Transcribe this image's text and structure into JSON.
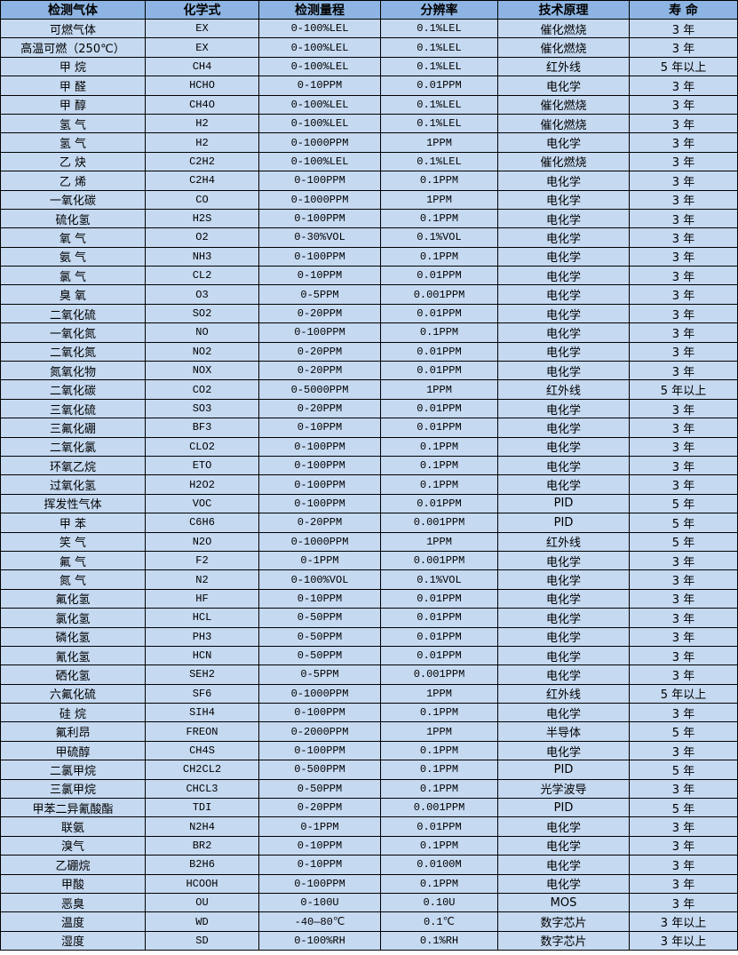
{
  "colors": {
    "header_bg": "#8DB4E2",
    "row_bg": "#C5D9F1"
  },
  "headers": [
    "检测气体",
    "化学式",
    "检测量程",
    "分辨率",
    "技术原理",
    "寿 命"
  ],
  "rows": [
    [
      "可燃气体",
      "EX",
      "0-100%LEL",
      "0.1%LEL",
      "催化燃烧",
      "3 年"
    ],
    [
      "高温可燃（250℃）",
      "EX",
      "0-100%LEL",
      "0.1%LEL",
      "催化燃烧",
      "3 年"
    ],
    [
      "甲 烷",
      "CH4",
      "0-100%LEL",
      "0.1%LEL",
      "红外线",
      "5 年以上"
    ],
    [
      "甲 醛",
      "HCHO",
      "0-10PPM",
      "0.01PPM",
      "电化学",
      "3 年"
    ],
    [
      "甲 醇",
      "CH4O",
      "0-100%LEL",
      "0.1%LEL",
      "催化燃烧",
      "3 年"
    ],
    [
      "氢 气",
      "H2",
      "0-100%LEL",
      "0.1%LEL",
      "催化燃烧",
      "3 年"
    ],
    [
      "氢 气",
      "H2",
      "0-1000PPM",
      "1PPM",
      "电化学",
      "3 年"
    ],
    [
      "乙 炔",
      "C2H2",
      "0-100%LEL",
      "0.1%LEL",
      "催化燃烧",
      "3 年"
    ],
    [
      "乙 烯",
      "C2H4",
      "0-100PPM",
      "0.1PPM",
      "电化学",
      "3 年"
    ],
    [
      "一氧化碳",
      "CO",
      "0-1000PPM",
      "1PPM",
      "电化学",
      "3 年"
    ],
    [
      "硫化氢",
      "H2S",
      "0-100PPM",
      "0.1PPM",
      "电化学",
      "3 年"
    ],
    [
      "氧 气",
      "O2",
      "0-30%VOL",
      "0.1%VOL",
      "电化学",
      "3 年"
    ],
    [
      "氨 气",
      "NH3",
      "0-100PPM",
      "0.1PPM",
      "电化学",
      "3 年"
    ],
    [
      "氯 气",
      "CL2",
      "0-10PPM",
      "0.01PPM",
      "电化学",
      "3 年"
    ],
    [
      "臭 氧",
      "O3",
      "0-5PPM",
      "0.001PPM",
      "电化学",
      "3 年"
    ],
    [
      "二氧化硫",
      "SO2",
      "0-20PPM",
      "0.01PPM",
      "电化学",
      "3 年"
    ],
    [
      "一氧化氮",
      "NO",
      "0-100PPM",
      "0.1PPM",
      "电化学",
      "3 年"
    ],
    [
      "二氧化氮",
      "NO2",
      "0-20PPM",
      "0.01PPM",
      "电化学",
      "3 年"
    ],
    [
      "氮氧化物",
      "NOX",
      "0-20PPM",
      "0.01PPM",
      "电化学",
      "3 年"
    ],
    [
      "二氧化碳",
      "CO2",
      "0-5000PPM",
      "1PPM",
      "红外线",
      "5 年以上"
    ],
    [
      "三氧化硫",
      "SO3",
      "0-20PPM",
      "0.01PPM",
      "电化学",
      "3 年"
    ],
    [
      "三氟化硼",
      "BF3",
      "0-10PPM",
      "0.01PPM",
      "电化学",
      "3 年"
    ],
    [
      "二氧化氯",
      "CLO2",
      "0-100PPM",
      "0.1PPM",
      "电化学",
      "3 年"
    ],
    [
      "环氧乙烷",
      "ETO",
      "0-100PPM",
      "0.1PPM",
      "电化学",
      "3 年"
    ],
    [
      "过氧化氢",
      "H2O2",
      "0-100PPM",
      "0.1PPM",
      "电化学",
      "3 年"
    ],
    [
      "挥发性气体",
      "VOC",
      "0-100PPM",
      "0.01PPM",
      "PID",
      "5 年"
    ],
    [
      "甲 苯",
      "C6H6",
      "0-20PPM",
      "0.001PPM",
      "PID",
      "5 年"
    ],
    [
      "笑 气",
      "N2O",
      "0-1000PPM",
      "1PPM",
      "红外线",
      "5 年"
    ],
    [
      "氟 气",
      "F2",
      "0-1PPM",
      "0.001PPM",
      "电化学",
      "3 年"
    ],
    [
      "氮 气",
      "N2",
      "0-100%VOL",
      "0.1%VOL",
      "电化学",
      "3 年"
    ],
    [
      "氟化氢",
      "HF",
      "0-10PPM",
      "0.01PPM",
      "电化学",
      "3 年"
    ],
    [
      "氯化氢",
      "HCL",
      "0-50PPM",
      "0.01PPM",
      "电化学",
      "3 年"
    ],
    [
      "磷化氢",
      "PH3",
      "0-50PPM",
      "0.01PPM",
      "电化学",
      "3 年"
    ],
    [
      "氰化氢",
      "HCN",
      "0-50PPM",
      "0.01PPM",
      "电化学",
      "3 年"
    ],
    [
      "硒化氢",
      "SEH2",
      "0-5PPM",
      "0.001PPM",
      "电化学",
      "3 年"
    ],
    [
      "六氟化硫",
      "SF6",
      "0-1000PPM",
      "1PPM",
      "红外线",
      "5 年以上"
    ],
    [
      "硅 烷",
      "SIH4",
      "0-100PPM",
      "0.1PPM",
      "电化学",
      "3 年"
    ],
    [
      "氟利昂",
      "FREON",
      "0-2000PPM",
      "1PPM",
      "半导体",
      "5 年"
    ],
    [
      "甲硫醇",
      "CH4S",
      "0-100PPM",
      "0.1PPM",
      "电化学",
      "3 年"
    ],
    [
      "二氯甲烷",
      "CH2CL2",
      "0-500PPM",
      "0.1PPM",
      "PID",
      "5 年"
    ],
    [
      "三氯甲烷",
      "CHCL3",
      "0-50PPM",
      "0.1PPM",
      "光学波导",
      "3 年"
    ],
    [
      "甲苯二异氰酸酯",
      "TDI",
      "0-20PPM",
      "0.001PPM",
      "PID",
      "5 年"
    ],
    [
      "联氨",
      "N2H4",
      "0-1PPM",
      "0.01PPM",
      "电化学",
      "3 年"
    ],
    [
      "溴气",
      "BR2",
      "0-10PPM",
      "0.1PPM",
      "电化学",
      "3 年"
    ],
    [
      "乙硼烷",
      "B2H6",
      "0-10PPM",
      "0.0100M",
      "电化学",
      "3 年"
    ],
    [
      "甲酸",
      "HCOOH",
      "0-100PPM",
      "0.1PPM",
      "电化学",
      "3 年"
    ],
    [
      "恶臭",
      "OU",
      "0-100U",
      "0.10U",
      "MOS",
      "3 年"
    ],
    [
      "温度",
      "WD",
      "-40—80℃",
      "0.1℃",
      "数字芯片",
      "3 年以上"
    ],
    [
      "湿度",
      "SD",
      "0-100%RH",
      "0.1%RH",
      "数字芯片",
      "3 年以上"
    ]
  ]
}
